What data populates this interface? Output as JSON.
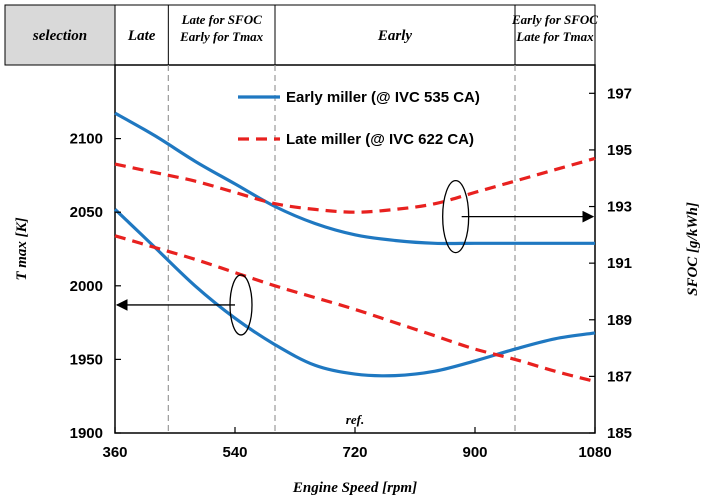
{
  "chart_data": {
    "type": "line",
    "xlabel": "Engine Speed [rpm]",
    "ylabel_left": "T max [K]",
    "ylabel_right": "SFOC [g/kWh]",
    "xlim": [
      360,
      1080
    ],
    "ylim_left": [
      1900,
      2150
    ],
    "ylim_right": [
      185,
      198
    ],
    "x_ticks": [
      360,
      540,
      720,
      900,
      1080
    ],
    "y_left_ticks": [
      1900,
      1950,
      2000,
      2050,
      2100
    ],
    "y_right_ticks": [
      185,
      187,
      189,
      191,
      193,
      195,
      197
    ],
    "grid": false,
    "legend_position": "top-center",
    "selection_header": {
      "label": "selection",
      "regions": [
        {
          "lines": [
            "Late"
          ]
        },
        {
          "lines": [
            "Late for SFOC",
            "Early for Tmax"
          ]
        },
        {
          "lines": [
            "Early"
          ]
        },
        {
          "lines": [
            "Early for SFOC",
            "Late for Tmax"
          ]
        }
      ],
      "boundaries": [
        360,
        440,
        600,
        960,
        1080
      ]
    },
    "annotation": "ref.",
    "series": [
      {
        "name": "Early miller (@ IVC 535 CA)",
        "style": "solid",
        "color": "#1f78c1",
        "tmax": {
          "x": [
            360,
            420,
            480,
            540,
            600,
            660,
            720,
            780,
            840,
            900,
            960,
            1020,
            1080
          ],
          "y": [
            2052,
            2026,
            2000,
            1978,
            1960,
            1946,
            1940,
            1939,
            1942,
            1949,
            1957,
            1964,
            1968
          ]
        },
        "sfoc": {
          "x": [
            360,
            420,
            480,
            540,
            600,
            660,
            720,
            780,
            840,
            900,
            960,
            1020,
            1080
          ],
          "y": [
            196.3,
            195.5,
            194.6,
            193.8,
            193.0,
            192.4,
            192.0,
            191.8,
            191.7,
            191.7,
            191.7,
            191.7,
            191.7
          ]
        }
      },
      {
        "name": "Late miller (@ IVC 622 CA)",
        "style": "dashed",
        "color": "#e8211f",
        "tmax": {
          "x": [
            360,
            420,
            480,
            540,
            600,
            660,
            720,
            780,
            840,
            900,
            960,
            1020,
            1080
          ],
          "y": [
            2034,
            2026,
            2018,
            2009,
            2000,
            1992,
            1984,
            1975,
            1966,
            1957,
            1950,
            1942,
            1935
          ]
        },
        "sfoc": {
          "x": [
            360,
            420,
            480,
            540,
            600,
            660,
            720,
            780,
            840,
            900,
            960,
            1020,
            1080
          ],
          "y": [
            194.5,
            194.2,
            193.9,
            193.5,
            193.1,
            192.9,
            192.8,
            192.9,
            193.1,
            193.5,
            193.9,
            194.3,
            194.7
          ]
        }
      }
    ],
    "arrows": [
      {
        "target": "left",
        "from_x": 540,
        "to_x": 360,
        "y_left": 1987
      },
      {
        "target": "right",
        "from_x": 880,
        "to_x": 1080,
        "y_left": 2047
      }
    ]
  }
}
